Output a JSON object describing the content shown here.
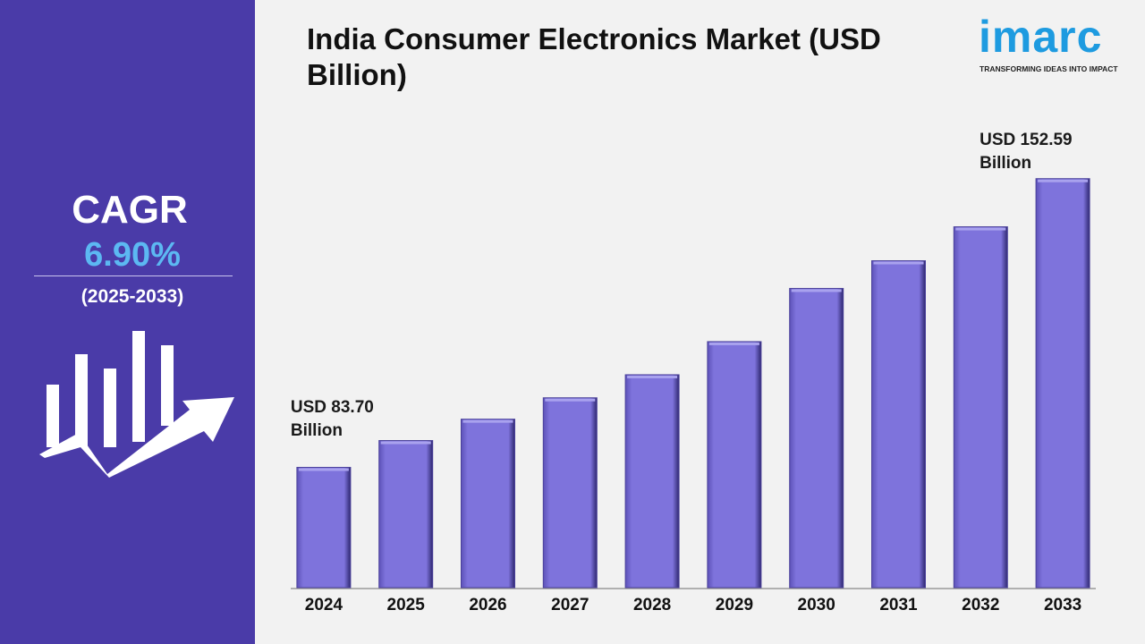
{
  "sidebar": {
    "cagr_label": "CAGR",
    "cagr_value": "6.90%",
    "period": "(2025-2033)"
  },
  "logo": {
    "name": "imarc",
    "tagline": "TRANSFORMING IDEAS INTO IMPACT"
  },
  "chart_data": {
    "type": "bar",
    "title": "India Consumer Electronics Market (USD Billion)",
    "categories": [
      "2024",
      "2025",
      "2026",
      "2027",
      "2028",
      "2029",
      "2030",
      "2031",
      "2032",
      "2033"
    ],
    "values": [
      83.7,
      90.1,
      95.2,
      100.3,
      105.8,
      113.7,
      126.4,
      133.0,
      141.1,
      152.59
    ],
    "value_labels": [
      "USD 83.70 Billion",
      null,
      null,
      null,
      null,
      null,
      null,
      null,
      null,
      "USD 152.59 Billion"
    ],
    "color": "#7b70d9",
    "ylim": [
      55,
      160
    ]
  }
}
